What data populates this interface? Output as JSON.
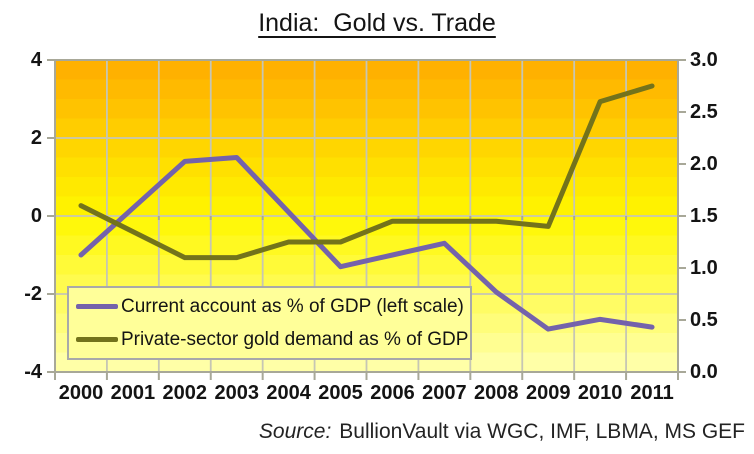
{
  "title": "India:  Gold vs. Trade",
  "source": {
    "prefix": "Source:",
    "text": "BullionVault via WGC, IMF, LBMA, MS GEF"
  },
  "legend": {
    "position": "bottom-left-inside-plot",
    "items": [
      {
        "label": "Current account as % of GDP (left scale)",
        "series": "current_account"
      },
      {
        "label": "Private-sector gold demand as % of GDP",
        "series": "gold_demand"
      }
    ]
  },
  "colors": {
    "current_account_line": "#7462ab",
    "gold_demand_line": "#73731b",
    "gradient_top": "#ffac00",
    "gradient_mid": "#fff700",
    "gradient_bottom": "#ffffb2",
    "gridline": "#c6c6b4",
    "axis": "#a8a898",
    "legend_bg": "#ffff99",
    "text": "#141414"
  },
  "chart_data": {
    "type": "line",
    "title": "India:  Gold vs. Trade",
    "categories": [
      "2000",
      "2001",
      "2002",
      "2003",
      "2004",
      "2005",
      "2006",
      "2007",
      "2008",
      "2009",
      "2010",
      "2011"
    ],
    "series": [
      {
        "name": "Current account as % of GDP (left scale)",
        "axis": "left",
        "color": "#7462ab",
        "values": [
          -1.0,
          0.2,
          1.4,
          1.5,
          0.1,
          -1.3,
          -1.0,
          -0.7,
          -1.95,
          -2.9,
          -2.65,
          -2.85
        ]
      },
      {
        "name": "Private-sector gold demand as % of GDP",
        "axis": "right",
        "color": "#73731b",
        "values": [
          1.6,
          1.35,
          1.1,
          1.1,
          1.25,
          1.25,
          1.45,
          1.45,
          1.45,
          1.4,
          2.6,
          2.75
        ]
      }
    ],
    "left_axis": {
      "min": -4,
      "max": 4,
      "ticks": [
        "4",
        "2",
        "0",
        "-2",
        "-4"
      ]
    },
    "right_axis": {
      "min": 0,
      "max": 3,
      "ticks": [
        "3.0",
        "2.5",
        "2.0",
        "1.5",
        "1.0",
        "0.5",
        "0.0"
      ]
    },
    "grid": "horizontal-and-vertical",
    "plot_background": "banded vertical gradient orange to pale yellow"
  }
}
